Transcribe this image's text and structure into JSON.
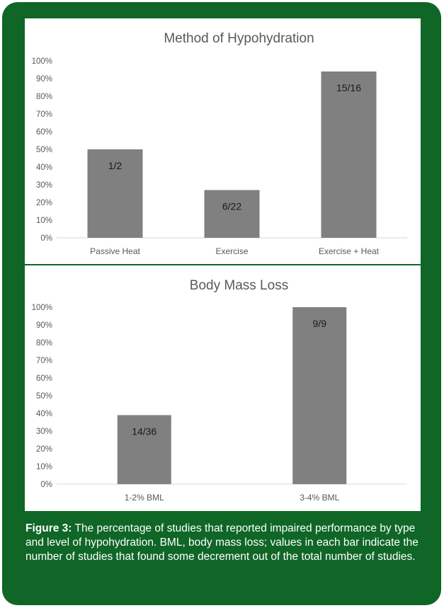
{
  "chart_data": [
    {
      "type": "bar",
      "title": "Method of Hypohydration",
      "categories": [
        "Passive Heat",
        "Exercise",
        "Exercise + Heat"
      ],
      "values": [
        50,
        27,
        94
      ],
      "data_labels": [
        "1/2",
        "6/22",
        "15/16"
      ],
      "ylim": [
        0,
        100
      ],
      "yticks": [
        "0%",
        "10%",
        "20%",
        "30%",
        "40%",
        "50%",
        "60%",
        "70%",
        "80%",
        "90%",
        "100%"
      ],
      "bar_color": "#808080",
      "grid": false
    },
    {
      "type": "bar",
      "title": "Body Mass Loss",
      "categories": [
        "1-2% BML",
        "3-4% BML"
      ],
      "values": [
        39,
        100
      ],
      "data_labels": [
        "14/36",
        "9/9"
      ],
      "ylim": [
        0,
        100
      ],
      "yticks": [
        "0%",
        "10%",
        "20%",
        "30%",
        "40%",
        "50%",
        "60%",
        "70%",
        "80%",
        "90%",
        "100%"
      ],
      "bar_color": "#808080",
      "grid": false
    }
  ],
  "caption": {
    "label": "Figure 3:",
    "text": " The percentage of studies that reported impaired performance by type and level of hypohydration. BML, body mass loss; values in each bar indicate the number of studies that found some decrement out of the total number of studies."
  },
  "colors": {
    "frame": "#0f6626",
    "bars": "#808080",
    "caption_text": "#ffffff"
  }
}
